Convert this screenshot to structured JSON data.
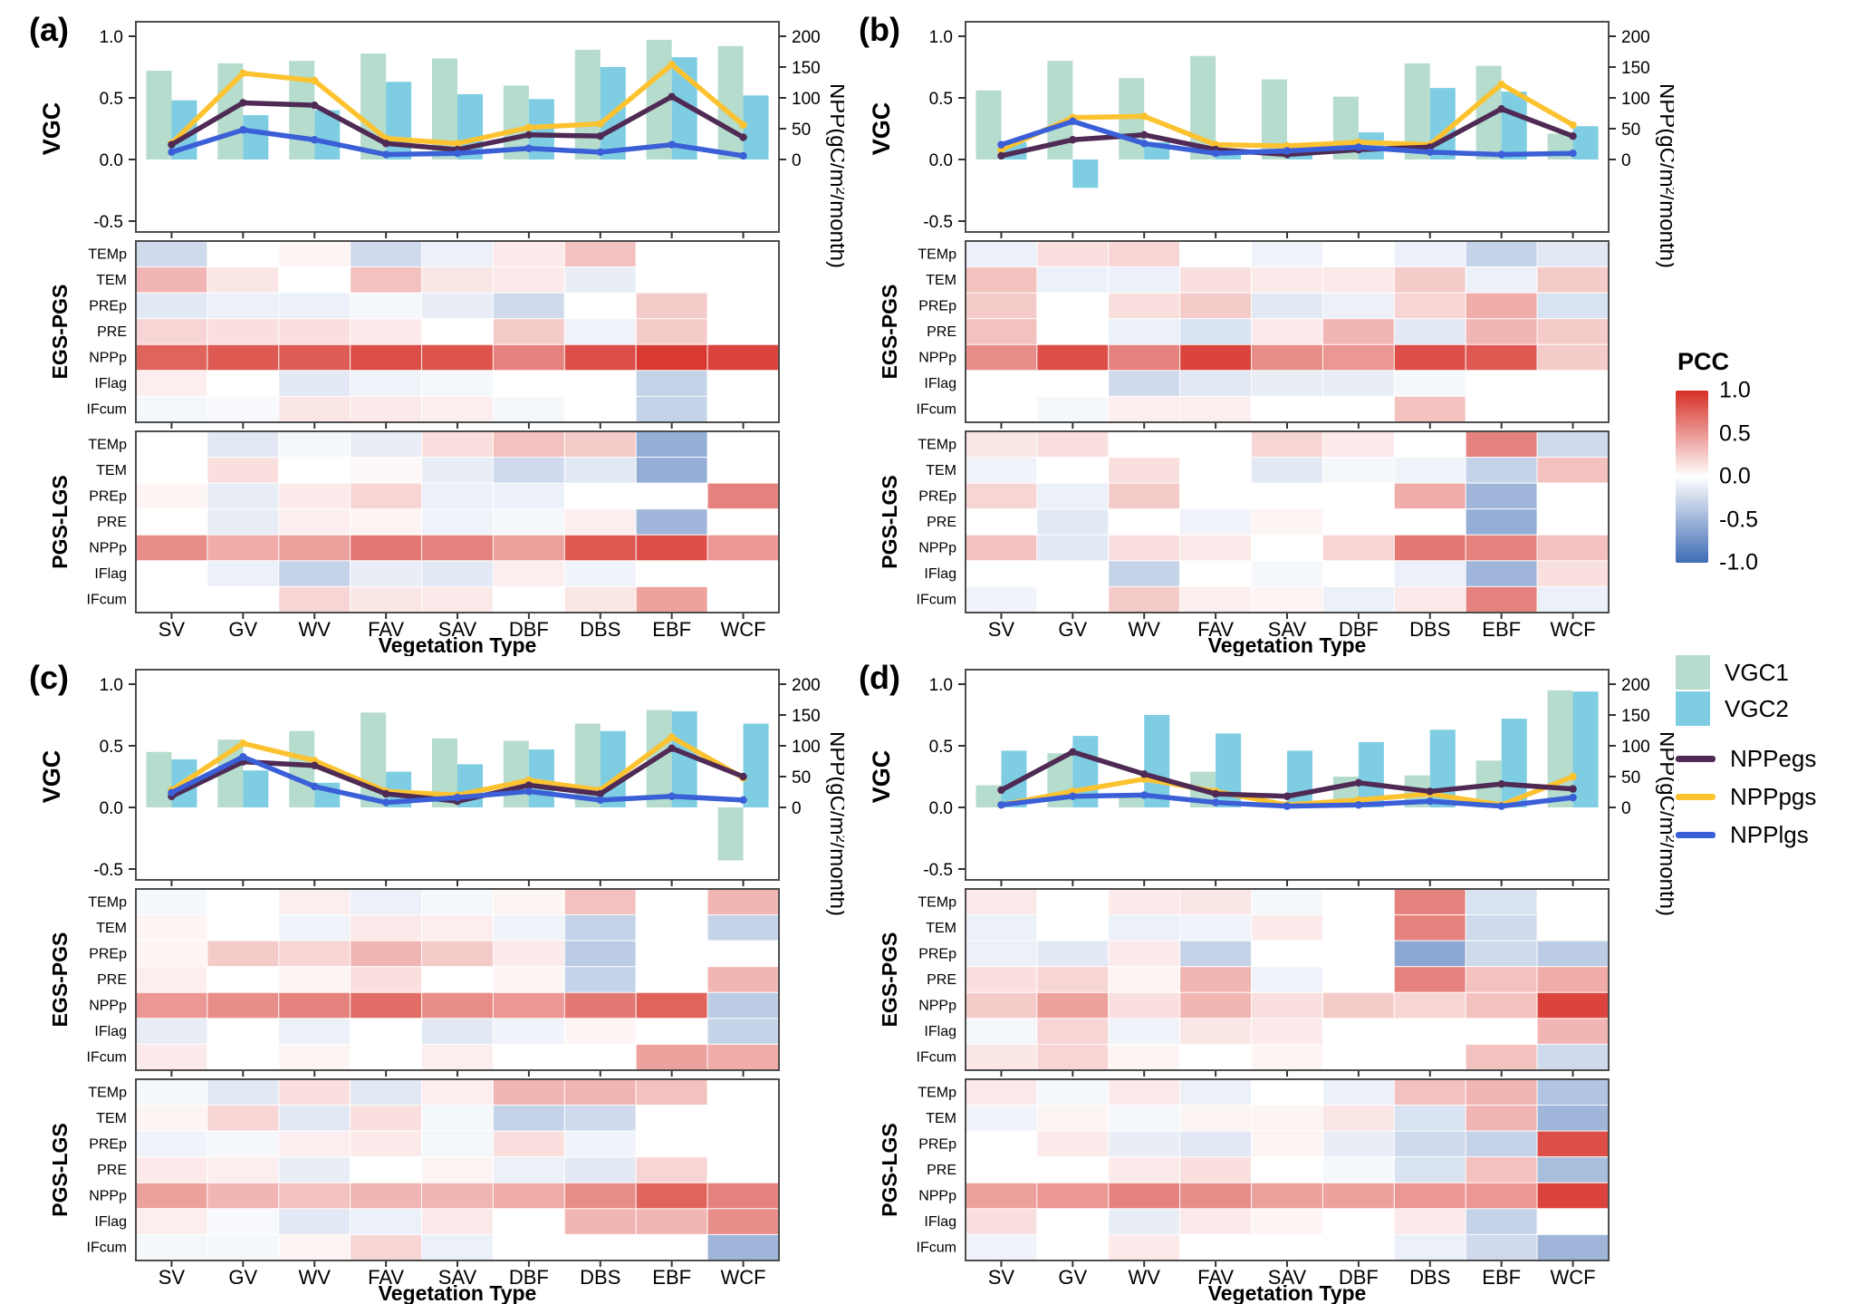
{
  "palette": {
    "vgc1": "#b5dccd",
    "vgc2": "#7ecde2",
    "nppegs": "#4e2a54",
    "npppgs": "#fcc22f",
    "npplgs": "#3a5fd7",
    "frame": "#4d4d4d"
  },
  "colorbar": {
    "title": "PCC",
    "ticks": [
      "1.0",
      "0.5",
      "0.0",
      "-0.5",
      "-1.0"
    ],
    "top_color": "#d62f26",
    "mid_color": "#ffffff",
    "bottom_color": "#3f6cb4"
  },
  "legend": {
    "entries": [
      {
        "label": "VGC1",
        "type": "bar",
        "color": "#b5dccd"
      },
      {
        "label": "VGC2",
        "type": "bar",
        "color": "#7ecde2"
      },
      {
        "label": "NPPegs",
        "type": "line",
        "color": "#4e2a54"
      },
      {
        "label": "NPPpgs",
        "type": "line",
        "color": "#fcc22f"
      },
      {
        "label": "NPPlgs",
        "type": "line",
        "color": "#3a5fd7"
      }
    ]
  },
  "chart_data": {
    "type": "bar+line+heatmap",
    "categories": [
      "SV",
      "GV",
      "WV",
      "FAV",
      "SAV",
      "DBF",
      "DBS",
      "EBF",
      "WCF"
    ],
    "xlabel": "Vegetation Type",
    "left_axis": {
      "label": "VGC",
      "tick_labels": [
        "1.0",
        "0.5",
        "0.0",
        "-0.5"
      ],
      "tick_values": [
        1.0,
        0.5,
        0.0,
        -0.5
      ],
      "range": [
        -0.6,
        1.1
      ]
    },
    "right_axis": {
      "label": "NPP(gC/m²/month)",
      "tick_labels": [
        "200",
        "150",
        "100",
        "50",
        "0"
      ],
      "tick_values": [
        200,
        150,
        100,
        50,
        0
      ],
      "range": [
        -120,
        220
      ]
    },
    "heatmap_rows": [
      "TEMp",
      "TEM",
      "PREp",
      "PRE",
      "NPPp",
      "IFlag",
      "IFcum"
    ],
    "heatmap_groups": [
      "EGS-PGS",
      "PGS-LGS"
    ],
    "heatmap_scale": {
      "name": "PCC",
      "min": -1.0,
      "max": 1.0
    },
    "panels": [
      {
        "label": "(a)",
        "series": {
          "VGC1": [
            0.72,
            0.78,
            0.8,
            0.86,
            0.82,
            0.6,
            0.89,
            0.97,
            0.92
          ],
          "VGC2": [
            0.48,
            0.36,
            0.4,
            0.63,
            0.53,
            0.49,
            0.75,
            0.83,
            0.52
          ],
          "NPPegs": [
            24,
            92,
            88,
            26,
            16,
            40,
            38,
            102,
            36
          ],
          "NPPpgs": [
            26,
            140,
            128,
            34,
            26,
            52,
            58,
            154,
            56
          ],
          "NPPlgs": [
            12,
            48,
            32,
            8,
            10,
            18,
            12,
            24,
            6
          ]
        },
        "egs_pgs": [
          [
            -0.25,
            0.0,
            0.05,
            -0.25,
            -0.1,
            0.1,
            0.3,
            0.0,
            0.0
          ],
          [
            0.35,
            0.12,
            0.0,
            0.3,
            0.12,
            0.1,
            -0.12,
            0.0,
            0.0
          ],
          [
            -0.15,
            -0.1,
            -0.1,
            -0.05,
            -0.12,
            -0.25,
            0.0,
            0.25,
            0.0
          ],
          [
            0.2,
            0.15,
            0.15,
            0.1,
            0.0,
            0.25,
            -0.08,
            0.25,
            0.0
          ],
          [
            0.75,
            0.8,
            0.78,
            0.85,
            0.82,
            0.6,
            0.85,
            0.95,
            0.9
          ],
          [
            0.08,
            0.0,
            -0.15,
            -0.08,
            -0.05,
            0.0,
            0.0,
            -0.3,
            0.0
          ],
          [
            -0.05,
            -0.04,
            0.12,
            0.1,
            0.08,
            -0.05,
            0.0,
            -0.3,
            0.0
          ]
        ],
        "pgs_lgs": [
          [
            0.0,
            -0.15,
            -0.05,
            -0.12,
            0.15,
            0.3,
            0.25,
            -0.55,
            0.0
          ],
          [
            0.0,
            0.15,
            0.0,
            0.03,
            -0.12,
            -0.25,
            -0.15,
            -0.55,
            0.0
          ],
          [
            0.05,
            -0.12,
            0.1,
            0.2,
            -0.1,
            -0.1,
            0.0,
            0.0,
            0.6
          ],
          [
            0.0,
            -0.12,
            0.08,
            0.05,
            -0.08,
            -0.05,
            0.08,
            -0.5,
            0.0
          ],
          [
            0.55,
            0.4,
            0.45,
            0.65,
            0.6,
            0.45,
            0.8,
            0.85,
            0.5
          ],
          [
            0.0,
            -0.1,
            -0.3,
            -0.12,
            -0.15,
            0.08,
            -0.08,
            0.0,
            0.0
          ],
          [
            0.0,
            0.0,
            0.2,
            0.12,
            0.1,
            0.0,
            0.12,
            0.45,
            0.0
          ]
        ]
      },
      {
        "label": "(b)",
        "series": {
          "VGC1": [
            0.56,
            0.8,
            0.66,
            0.84,
            0.65,
            0.51,
            0.78,
            0.76,
            0.21
          ],
          "VGC2": [
            0.14,
            -0.23,
            0.14,
            0.05,
            0.04,
            0.22,
            0.58,
            0.55,
            0.27
          ],
          "NPPegs": [
            6,
            32,
            40,
            16,
            8,
            16,
            20,
            82,
            38
          ],
          "NPPpgs": [
            16,
            68,
            70,
            24,
            22,
            28,
            24,
            122,
            56
          ],
          "NPPlgs": [
            24,
            62,
            26,
            10,
            14,
            20,
            12,
            8,
            10
          ]
        },
        "egs_pgs": [
          [
            -0.1,
            0.15,
            0.2,
            0.0,
            -0.08,
            0.0,
            -0.1,
            -0.3,
            -0.15
          ],
          [
            0.3,
            -0.1,
            -0.1,
            0.15,
            0.1,
            0.1,
            0.25,
            -0.1,
            0.25
          ],
          [
            0.25,
            0.0,
            0.15,
            0.25,
            -0.15,
            -0.1,
            0.2,
            0.4,
            -0.2
          ],
          [
            0.3,
            0.0,
            -0.1,
            -0.2,
            0.1,
            0.35,
            -0.15,
            0.35,
            0.25
          ],
          [
            0.55,
            0.85,
            0.6,
            0.9,
            0.55,
            0.5,
            0.85,
            0.8,
            0.25
          ],
          [
            0.0,
            0.0,
            -0.25,
            -0.15,
            -0.12,
            -0.12,
            -0.05,
            0.0,
            0.0
          ],
          [
            0.0,
            -0.05,
            0.08,
            0.08,
            0.0,
            0.0,
            0.3,
            0.0,
            0.0
          ]
        ],
        "pgs_lgs": [
          [
            0.12,
            0.15,
            0.0,
            0.0,
            0.2,
            0.1,
            0.0,
            0.6,
            -0.25
          ],
          [
            -0.08,
            0.0,
            0.15,
            0.0,
            -0.15,
            -0.05,
            -0.08,
            -0.3,
            0.3
          ],
          [
            0.2,
            -0.1,
            0.25,
            0.0,
            0.0,
            0.0,
            0.4,
            -0.5,
            0.0
          ],
          [
            0.0,
            -0.15,
            0.0,
            -0.08,
            0.05,
            0.0,
            0.0,
            -0.55,
            0.0
          ],
          [
            0.3,
            -0.15,
            0.15,
            0.1,
            0.0,
            0.2,
            0.65,
            0.6,
            0.3
          ],
          [
            0.0,
            0.0,
            -0.3,
            0.0,
            -0.05,
            0.0,
            -0.1,
            -0.5,
            0.15
          ],
          [
            -0.08,
            0.0,
            0.25,
            0.08,
            0.05,
            -0.1,
            0.1,
            0.6,
            -0.1
          ]
        ]
      },
      {
        "label": "(c)",
        "series": {
          "VGC1": [
            0.45,
            0.55,
            0.62,
            0.77,
            0.56,
            0.54,
            0.68,
            0.79,
            -0.43
          ],
          "VGC2": [
            0.39,
            0.3,
            0.2,
            0.29,
            0.35,
            0.47,
            0.62,
            0.78,
            0.68
          ],
          "NPPegs": [
            18,
            74,
            68,
            22,
            10,
            36,
            22,
            96,
            50
          ],
          "NPPpgs": [
            28,
            104,
            76,
            26,
            20,
            44,
            28,
            114,
            48
          ],
          "NPPlgs": [
            24,
            82,
            34,
            8,
            16,
            26,
            12,
            18,
            12
          ]
        },
        "egs_pgs": [
          [
            -0.05,
            0.0,
            0.08,
            -0.1,
            -0.05,
            0.05,
            0.3,
            0.0,
            0.35
          ],
          [
            0.05,
            0.0,
            -0.08,
            0.1,
            0.08,
            -0.08,
            -0.3,
            0.0,
            -0.3
          ],
          [
            0.05,
            0.25,
            0.2,
            0.35,
            0.25,
            0.1,
            -0.35,
            0.0,
            0.0
          ],
          [
            0.08,
            0.0,
            0.05,
            0.15,
            0.0,
            0.05,
            -0.3,
            0.0,
            0.35
          ],
          [
            0.5,
            0.55,
            0.6,
            0.7,
            0.55,
            0.5,
            0.65,
            0.75,
            -0.35
          ],
          [
            -0.12,
            0.0,
            -0.1,
            0.0,
            -0.15,
            -0.08,
            0.05,
            0.0,
            -0.3
          ],
          [
            0.1,
            0.0,
            0.05,
            0.0,
            0.08,
            0.0,
            0.0,
            0.45,
            0.4
          ]
        ],
        "pgs_lgs": [
          [
            -0.05,
            -0.15,
            0.15,
            -0.15,
            0.08,
            0.35,
            0.35,
            0.3,
            0.0
          ],
          [
            0.05,
            0.2,
            -0.15,
            0.15,
            -0.05,
            -0.3,
            -0.25,
            0.0,
            0.0
          ],
          [
            -0.08,
            -0.05,
            0.08,
            0.1,
            -0.05,
            0.15,
            -0.08,
            0.0,
            0.0
          ],
          [
            0.1,
            0.08,
            -0.12,
            0.0,
            0.05,
            -0.1,
            -0.15,
            0.2,
            0.0
          ],
          [
            0.45,
            0.35,
            0.3,
            0.35,
            0.35,
            0.4,
            0.55,
            0.75,
            0.6
          ],
          [
            0.08,
            -0.04,
            -0.15,
            -0.1,
            0.1,
            0.0,
            0.35,
            0.35,
            0.55
          ],
          [
            -0.05,
            -0.05,
            0.05,
            0.2,
            -0.1,
            0.0,
            0.0,
            0.0,
            -0.5
          ]
        ]
      },
      {
        "label": "(d)",
        "series": {
          "VGC1": [
            0.18,
            0.44,
            0.09,
            0.29,
            0.02,
            0.25,
            0.26,
            0.38,
            0.95
          ],
          "VGC2": [
            0.46,
            0.58,
            0.75,
            0.6,
            0.46,
            0.53,
            0.63,
            0.72,
            0.94
          ],
          "NPPegs": [
            28,
            90,
            54,
            22,
            18,
            40,
            26,
            38,
            30
          ],
          "NPPpgs": [
            4,
            26,
            46,
            26,
            4,
            12,
            22,
            4,
            50
          ],
          "NPPlgs": [
            4,
            18,
            20,
            8,
            2,
            4,
            10,
            2,
            16
          ]
        },
        "egs_pgs": [
          [
            0.1,
            0.0,
            0.1,
            0.12,
            -0.05,
            0.0,
            0.6,
            -0.2,
            0.0
          ],
          [
            -0.1,
            0.0,
            -0.1,
            -0.08,
            0.1,
            0.0,
            0.6,
            -0.25,
            0.0
          ],
          [
            -0.1,
            -0.15,
            0.1,
            -0.3,
            0.0,
            0.0,
            -0.6,
            -0.25,
            -0.35
          ],
          [
            0.15,
            0.2,
            0.05,
            0.35,
            -0.08,
            0.0,
            0.6,
            0.3,
            0.4
          ],
          [
            0.25,
            0.45,
            0.15,
            0.35,
            0.15,
            0.25,
            0.2,
            0.3,
            0.9
          ],
          [
            -0.05,
            0.2,
            -0.08,
            0.12,
            0.1,
            0.0,
            0.0,
            0.0,
            0.35
          ],
          [
            0.12,
            0.2,
            0.05,
            0.0,
            0.05,
            0.0,
            0.0,
            0.3,
            -0.25
          ]
        ],
        "pgs_lgs": [
          [
            0.1,
            -0.05,
            0.1,
            -0.1,
            0.0,
            -0.1,
            0.3,
            0.35,
            -0.4
          ],
          [
            -0.08,
            0.05,
            -0.05,
            0.05,
            0.05,
            0.12,
            -0.2,
            0.35,
            -0.5
          ],
          [
            0.0,
            0.1,
            -0.12,
            -0.15,
            0.05,
            -0.12,
            -0.25,
            -0.3,
            0.85
          ],
          [
            0.0,
            0.0,
            0.1,
            0.15,
            0.0,
            -0.05,
            -0.2,
            0.3,
            -0.45
          ],
          [
            0.45,
            0.5,
            0.6,
            0.55,
            0.45,
            0.45,
            0.5,
            0.5,
            0.9
          ],
          [
            0.15,
            0.0,
            -0.12,
            0.1,
            0.05,
            0.0,
            0.1,
            -0.3,
            0.0
          ],
          [
            -0.08,
            0.0,
            0.1,
            0.0,
            0.0,
            0.0,
            -0.1,
            -0.25,
            -0.5
          ]
        ]
      }
    ]
  }
}
